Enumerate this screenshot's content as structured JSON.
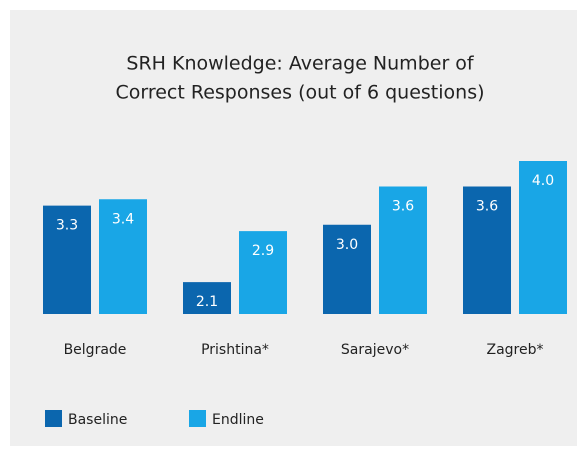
{
  "chart_data": {
    "type": "bar",
    "title": [
      "SRH Knowledge: Average Number of",
      "Correct Responses (out of 6 questions)"
    ],
    "categories": [
      "Belgrade",
      "Prishtina*",
      "Sarajevo*",
      "Zagreb*"
    ],
    "series": [
      {
        "name": "Baseline",
        "color": "#0b66ae",
        "values": [
          3.3,
          2.1,
          3.0,
          3.6
        ],
        "value_labels": [
          "3.3",
          "2.1",
          "3.0",
          "3.6"
        ]
      },
      {
        "name": "Endline",
        "color": "#19a6e6",
        "values": [
          3.4,
          2.9,
          3.6,
          4.0
        ],
        "value_labels": [
          "3.4",
          "2.9",
          "3.6",
          "4.0"
        ]
      }
    ],
    "ylim": [
      1.6,
      4.0
    ]
  }
}
